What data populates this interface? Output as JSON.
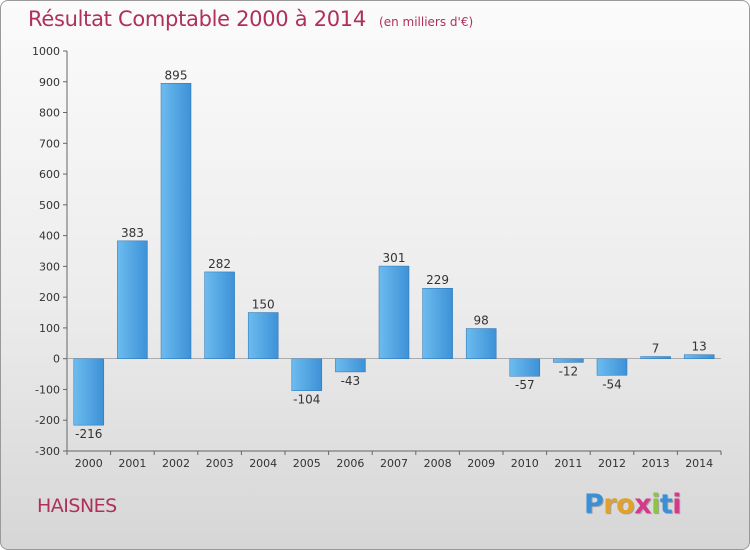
{
  "header": {
    "title": "Résultat Comptable 2000 à 2014",
    "subtitle": "(en milliers d'€)"
  },
  "footer": {
    "city": "HAISNES",
    "logo_letters": [
      "P",
      "r",
      "o",
      "x",
      "i",
      "t",
      "i"
    ],
    "logo_colors": [
      "#3b8fd6",
      "#e2a12b",
      "#e2a12b",
      "#d43a8a",
      "#8cc63f",
      "#3b8fd6",
      "#d43a8a"
    ]
  },
  "colors": {
    "bar_light": "#5fb0ea",
    "bar_dark": "#2a7ec4",
    "axis": "#555555",
    "grid_tick": "#666666"
  },
  "chart_data": {
    "type": "bar",
    "title": "Résultat Comptable 2000 à 2014",
    "subtitle": "(en milliers d'€)",
    "categories": [
      "2000",
      "2001",
      "2002",
      "2003",
      "2004",
      "2005",
      "2006",
      "2007",
      "2008",
      "2009",
      "2010",
      "2011",
      "2012",
      "2013",
      "2014"
    ],
    "values": [
      -216,
      383,
      895,
      282,
      150,
      -104,
      -43,
      301,
      229,
      98,
      -57,
      -12,
      -54,
      7,
      13
    ],
    "ylim": [
      -300,
      1000
    ],
    "yticks": [
      -300,
      -200,
      -100,
      0,
      100,
      200,
      300,
      400,
      500,
      600,
      700,
      800,
      900,
      1000
    ],
    "grid": false,
    "legend": "none"
  }
}
